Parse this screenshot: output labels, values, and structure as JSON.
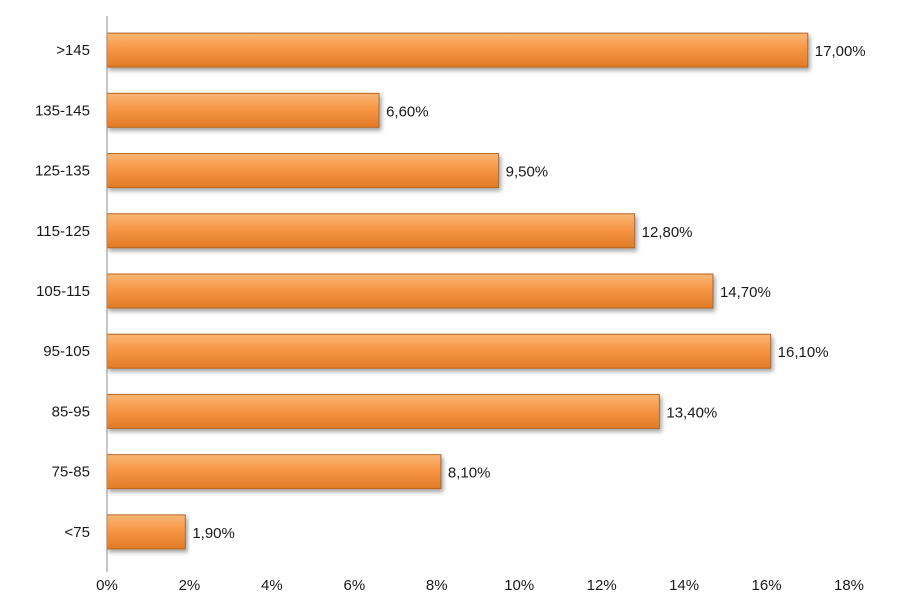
{
  "chart_data": {
    "type": "bar",
    "orientation": "horizontal",
    "categories": [
      ">145",
      "135-145",
      "125-135",
      "115-125",
      "105-115",
      "95-105",
      "85-95",
      "75-85",
      "<75"
    ],
    "values": [
      17.0,
      6.6,
      9.5,
      12.8,
      14.7,
      16.1,
      13.4,
      8.1,
      1.9
    ],
    "data_labels": [
      "17,00%",
      "6,60%",
      "9,50%",
      "12,80%",
      "14,70%",
      "16,10%",
      "13,40%",
      "8,10%",
      "1,90%"
    ],
    "x_ticks": [
      "0%",
      "2%",
      "4%",
      "6%",
      "8%",
      "10%",
      "12%",
      "14%",
      "16%",
      "18%"
    ],
    "xlim": [
      0,
      18
    ],
    "title": "",
    "xlabel": "",
    "ylabel": "",
    "grid": false,
    "legend": "none",
    "colors": {
      "bar_fill_light": "#f9b775",
      "bar_fill": "#f79646",
      "bar_fill_dark": "#e07a26",
      "bar_outline": "#b9651e",
      "axis": "#8c8c8c",
      "text": "#1a1a1a"
    }
  }
}
